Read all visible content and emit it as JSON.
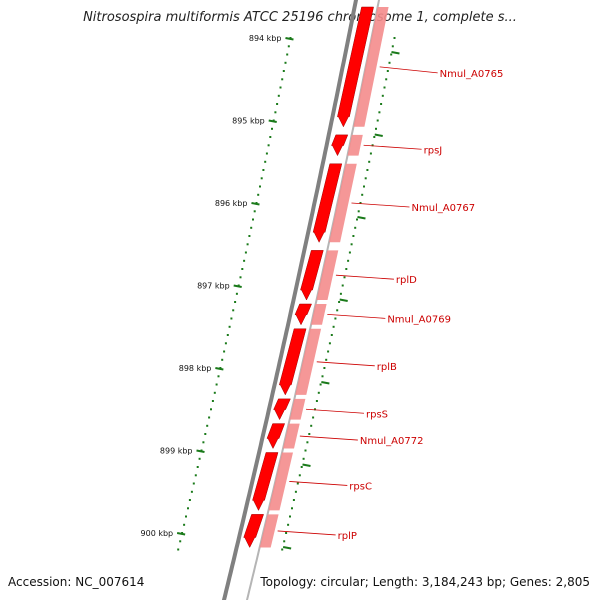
{
  "title": "Nitrosospira multiformis ATCC 25196 chromosome 1, complete s...",
  "footer": {
    "accession": "Accession: NC_007614",
    "summary": "Topology: circular; Length: 3,184,243 bp; Genes: 2,805"
  },
  "colors": {
    "backbone": "#808080",
    "gene_strong": "#ff0000",
    "gene_light": "#f48c8c",
    "label": "#cc0000",
    "ticks": "#1a7a1a"
  },
  "kbp_ticks": [
    {
      "label": "894 kbp",
      "kbp": 894
    },
    {
      "label": "895 kbp",
      "kbp": 895
    },
    {
      "label": "896 kbp",
      "kbp": 896
    },
    {
      "label": "897 kbp",
      "kbp": 897
    },
    {
      "label": "898 kbp",
      "kbp": 898
    },
    {
      "label": "899 kbp",
      "kbp": 899
    },
    {
      "label": "900 kbp",
      "kbp": 900
    }
  ],
  "genes": [
    {
      "label": "Nmul_A0765",
      "start": 893.6,
      "end": 895.1
    },
    {
      "label": "rpsJ",
      "start": 895.15,
      "end": 895.45
    },
    {
      "label": "Nmul_A0767",
      "start": 895.5,
      "end": 896.5
    },
    {
      "label": "rplD",
      "start": 896.55,
      "end": 897.2
    },
    {
      "label": "Nmul_A0769",
      "start": 897.2,
      "end": 897.5
    },
    {
      "label": "rplB",
      "start": 897.5,
      "end": 898.35
    },
    {
      "label": "rpsS",
      "start": 898.35,
      "end": 898.65
    },
    {
      "label": "Nmul_A0772",
      "start": 898.65,
      "end": 899.0
    },
    {
      "label": "rpsC",
      "start": 899.0,
      "end": 899.75
    },
    {
      "label": "rplP",
      "start": 899.75,
      "end": 900.2
    }
  ]
}
